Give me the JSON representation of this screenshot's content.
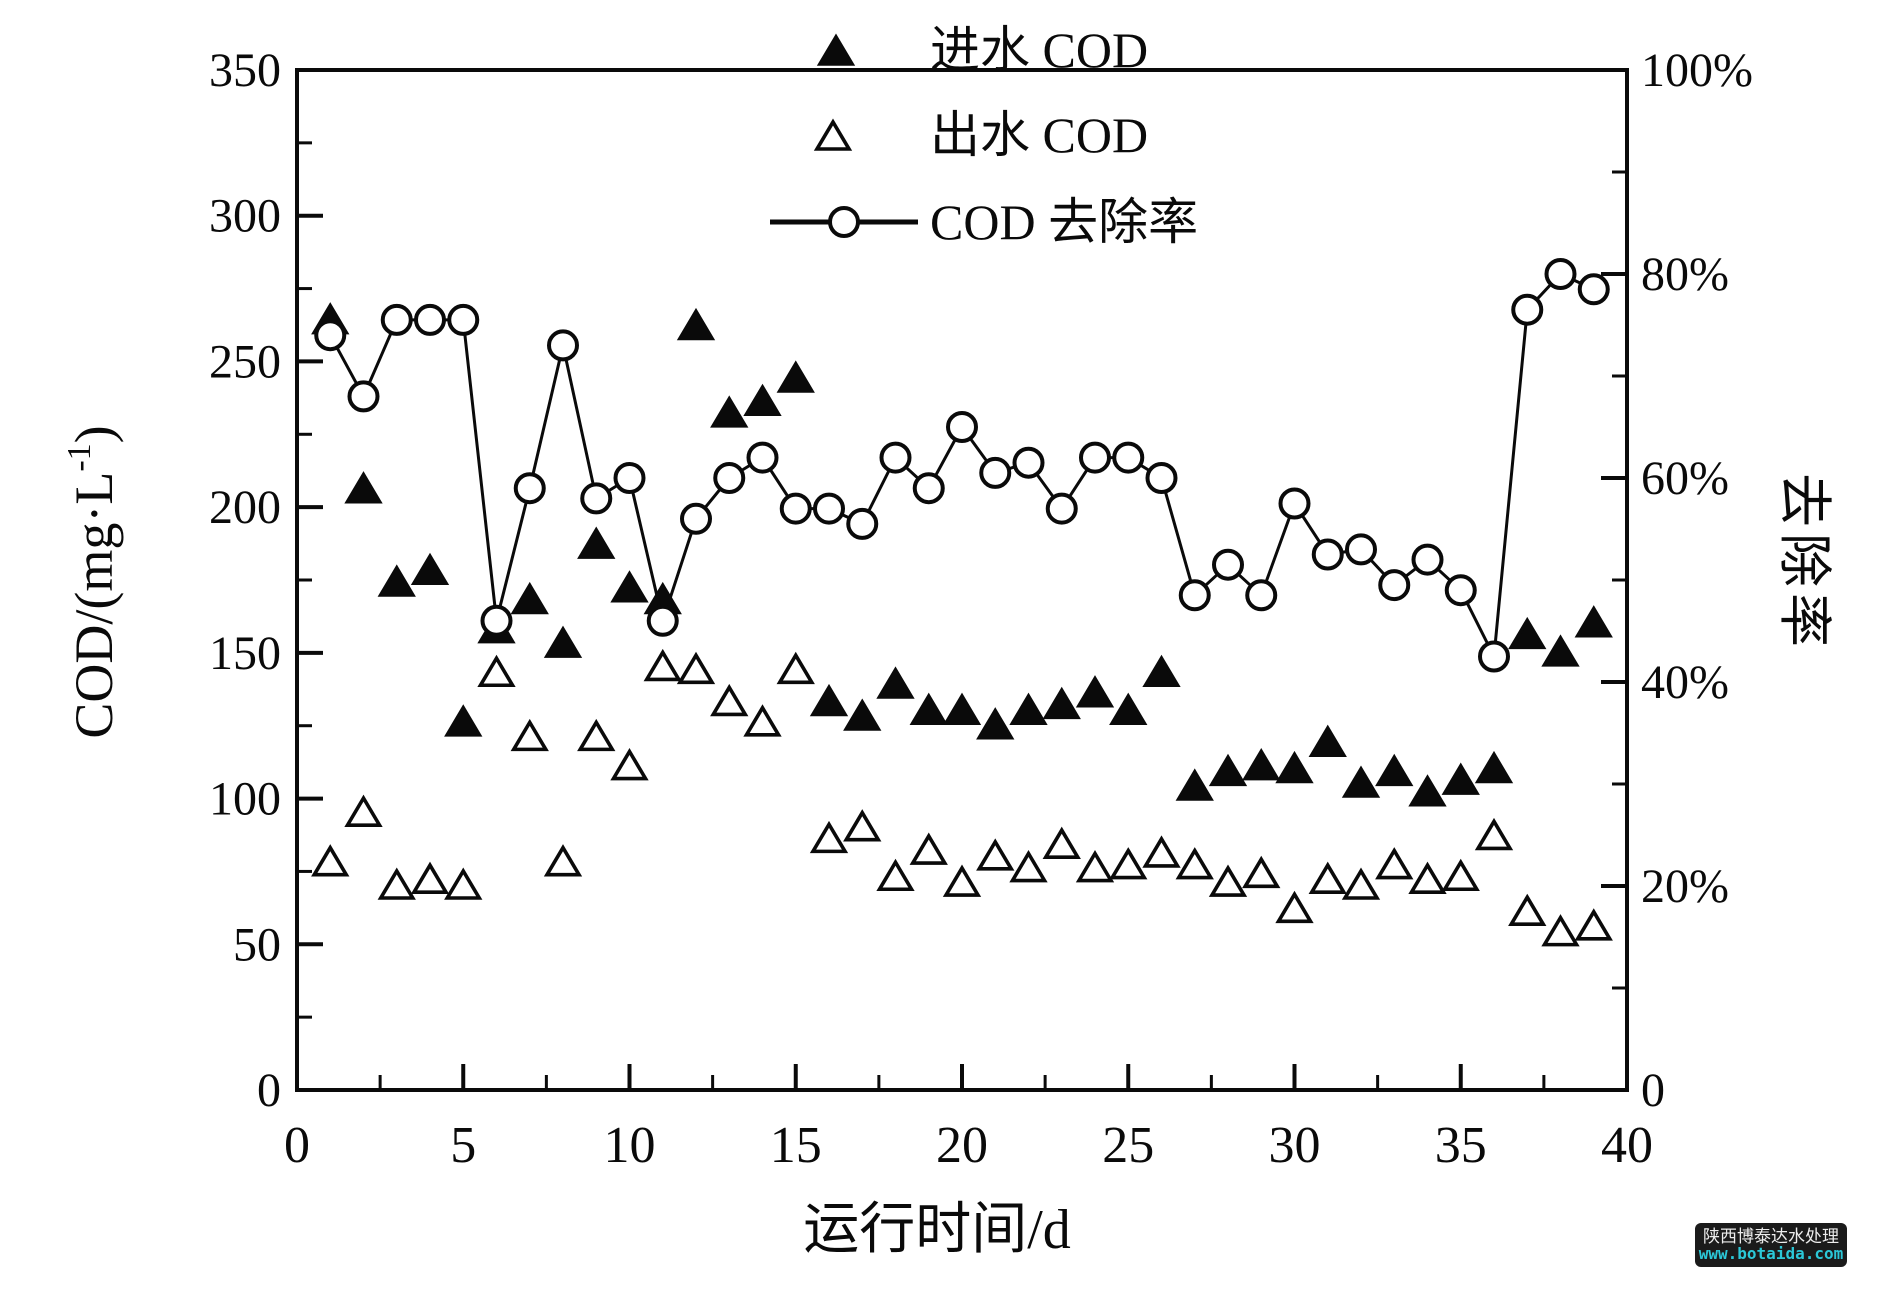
{
  "watermark": {
    "line1": "陕西博泰达水处理",
    "line2": "www.botaida.com",
    "bg_color": "#1b1b1b",
    "line1_color": "#ededed",
    "line2_color": "#2bc8d8"
  },
  "chart_data": {
    "type": "scatter",
    "title": "",
    "xlabel": "运行时间/d",
    "ylabel_left": {
      "text": "COD/(mg·L⁻¹)",
      "pre": "COD/(mg·L",
      "sup": "-1",
      "post": ")"
    },
    "ylabel_right": "去除率",
    "x_range": [
      0,
      40
    ],
    "x_major": 5,
    "x_minor": 2.5,
    "y_left_range": [
      0,
      350
    ],
    "y_left_major": 50,
    "y_left_minor": 25,
    "y_right_range": [
      0,
      100
    ],
    "y_right_major": 20,
    "y_right_minor": 10,
    "y_right_suffix": "%",
    "grid": false,
    "legend_position": "top-center",
    "ink_color": "#0a0a0a",
    "legend": [
      {
        "label": "进水 COD",
        "marker": "triangle-filled"
      },
      {
        "label": "出水 COD",
        "marker": "triangle-open"
      },
      {
        "label": "COD 去除率",
        "marker": "circle-line"
      }
    ],
    "x": [
      1,
      2,
      3,
      4,
      5,
      6,
      7,
      8,
      9,
      10,
      11,
      12,
      13,
      14,
      15,
      16,
      17,
      18,
      19,
      20,
      21,
      22,
      23,
      24,
      25,
      26,
      27,
      28,
      29,
      30,
      31,
      32,
      33,
      34,
      35,
      36,
      37,
      38,
      39
    ],
    "series": [
      {
        "name": "进水 COD",
        "axis": "left",
        "marker": "triangle-filled",
        "line": false,
        "values": [
          264,
          206,
          174,
          178,
          126,
          158,
          168,
          153,
          187,
          172,
          168,
          262,
          232,
          236,
          244,
          133,
          128,
          139,
          130,
          130,
          125,
          130,
          132,
          136,
          130,
          143,
          104,
          109,
          111,
          110,
          119,
          105,
          109,
          102,
          106,
          110,
          156,
          150,
          160
        ]
      },
      {
        "name": "出水 COD",
        "axis": "left",
        "marker": "triangle-open",
        "line": false,
        "values": [
          78,
          95,
          70,
          72,
          70,
          143,
          121,
          78,
          121,
          111,
          145,
          144,
          133,
          126,
          144,
          86,
          90,
          73,
          82,
          71,
          80,
          76,
          84,
          76,
          77,
          81,
          77,
          71,
          74,
          62,
          72,
          70,
          77,
          72,
          73,
          87,
          61,
          54,
          56
        ]
      },
      {
        "name": "COD 去除率",
        "axis": "right",
        "marker": "circle-open",
        "line": true,
        "values": [
          74,
          68,
          75.5,
          75.5,
          75.5,
          46,
          59,
          73,
          58,
          60,
          46,
          56,
          60,
          62,
          57,
          57,
          55.5,
          62,
          59,
          65,
          60.5,
          61.5,
          57,
          62,
          62,
          60,
          48.5,
          51.5,
          48.5,
          57.5,
          52.5,
          53,
          49.5,
          52,
          49,
          42.5,
          76.5,
          80,
          78.5
        ]
      }
    ]
  }
}
